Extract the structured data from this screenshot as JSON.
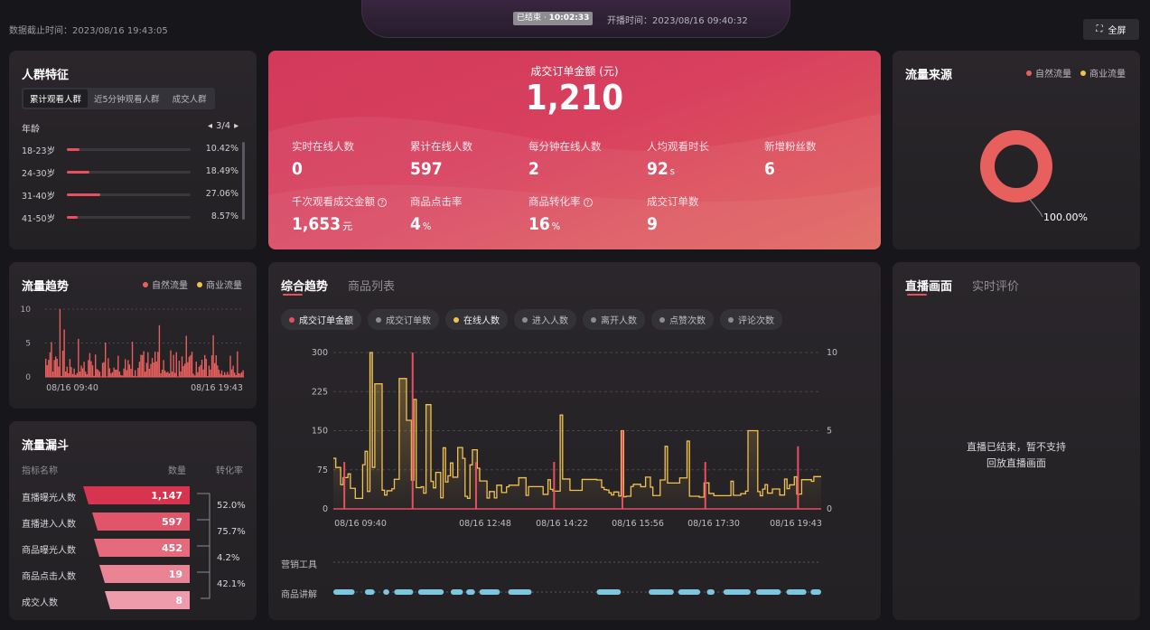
{
  "header": {
    "data_time_label": "数据截止时间：2023/08/16 19:43:05",
    "status": "已结束",
    "duration": "10:02:33",
    "start_time": "开播时间：2023/08/16 09:40:32",
    "fullscreen": "全屏"
  },
  "crowd": {
    "title": "人群特征",
    "tabs": [
      "累计观看人群",
      "近5分钟观看人群",
      "成交人群"
    ],
    "section": "年龄",
    "page": "3/4",
    "rows": [
      {
        "label": "18-23岁",
        "pct": "10.42%",
        "value": 10.42
      },
      {
        "label": "24-30岁",
        "pct": "18.49%",
        "value": 18.49
      },
      {
        "label": "31-40岁",
        "pct": "27.06%",
        "value": 27.06
      },
      {
        "label": "41-50岁",
        "pct": "8.57%",
        "value": 8.57
      }
    ]
  },
  "summary": {
    "title": "成交订单金额 (元)",
    "value": "1,210",
    "metrics": [
      {
        "label": "实时在线人数",
        "value": "0",
        "unit": ""
      },
      {
        "label": "累计在线人数",
        "value": "597",
        "unit": ""
      },
      {
        "label": "每分钟在线人数",
        "value": "2",
        "unit": ""
      },
      {
        "label": "人均观看时长",
        "value": "92",
        "unit": "s"
      },
      {
        "label": "新增粉丝数",
        "value": "6",
        "unit": ""
      },
      {
        "label": "千次观看成交金额",
        "value": "1,653",
        "unit": "元"
      },
      {
        "label": "商品点击率",
        "value": "4",
        "unit": "%"
      },
      {
        "label": "商品转化率",
        "value": "16",
        "unit": "%"
      },
      {
        "label": "成交订单数",
        "value": "9",
        "unit": ""
      }
    ]
  },
  "source": {
    "title": "流量来源",
    "legend": [
      "自然流量",
      "商业流量"
    ],
    "pct": "100.00%",
    "colors": [
      "#e8605e",
      "#f2c24f"
    ]
  },
  "trend": {
    "title": "流量趋势",
    "legend": [
      "自然流量",
      "商业流量"
    ],
    "yticks": [
      "10",
      "5",
      "0"
    ],
    "xticks": [
      "08/16 09:40",
      "08/16 19:43"
    ]
  },
  "funnel": {
    "title": "流量漏斗",
    "headers": [
      "指标名称",
      "数量",
      "转化率"
    ],
    "rows": [
      {
        "label": "直播曝光人数",
        "value": "1,147"
      },
      {
        "label": "直播进入人数",
        "value": "597"
      },
      {
        "label": "商品曝光人数",
        "value": "452"
      },
      {
        "label": "商品点击人数",
        "value": "19"
      },
      {
        "label": "成交人数",
        "value": "8"
      }
    ],
    "conv": [
      "52.0%",
      "75.7%",
      "4.2%",
      "42.1%"
    ]
  },
  "main": {
    "tabs": [
      "综合趋势",
      "商品列表"
    ],
    "chips": [
      {
        "label": "成交订单金额",
        "color": "#e6505f",
        "on": true
      },
      {
        "label": "成交订单数",
        "color": "#8c8c92",
        "on": false
      },
      {
        "label": "在线人数",
        "color": "#f2c24f",
        "on": true
      },
      {
        "label": "进入人数",
        "color": "#8c8c92",
        "on": false
      },
      {
        "label": "离开人数",
        "color": "#8c8c92",
        "on": false
      },
      {
        "label": "点赞次数",
        "color": "#8c8c92",
        "on": false
      },
      {
        "label": "评论次数",
        "color": "#8c8c92",
        "on": false
      }
    ],
    "yleft": [
      "300",
      "225",
      "150",
      "75",
      "0"
    ],
    "yright": [
      "10",
      "5",
      "0"
    ],
    "xticks": [
      "08/16 09:40",
      "08/16 12:48",
      "08/16 14:22",
      "08/16 15:56",
      "08/16 17:30",
      "08/16 19:43"
    ],
    "rows": [
      "营销工具",
      "商品讲解"
    ]
  },
  "live": {
    "tabs": [
      "直播画面",
      "实时评价"
    ],
    "msg1": "直播已结束，暂不支持",
    "msg2": "回放直播画面"
  }
}
